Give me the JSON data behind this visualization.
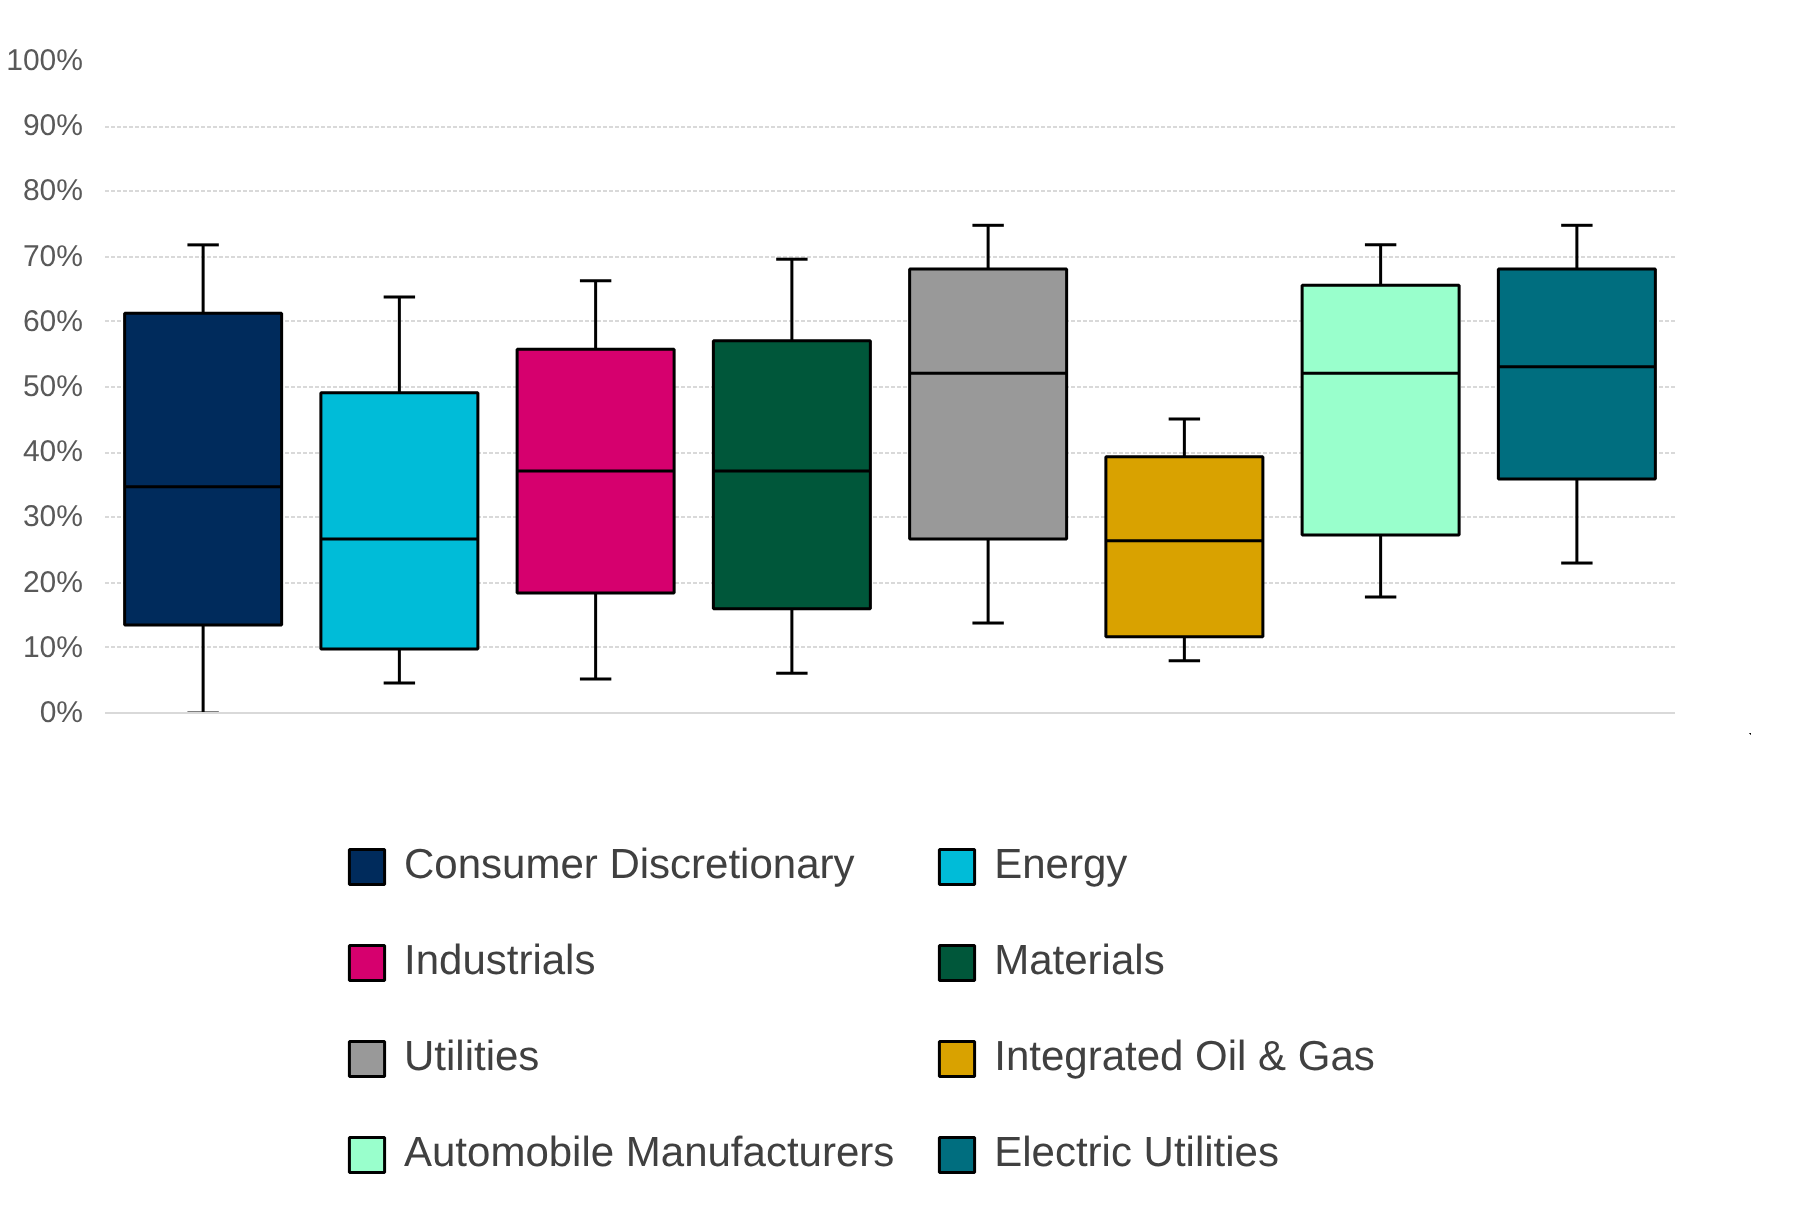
{
  "chart_data": {
    "type": "box",
    "categories": [
      null,
      null,
      null,
      null,
      null,
      null,
      null,
      null
    ],
    "series": [
      {
        "name": "Consumer Discretionary",
        "color": "#002b5c",
        "boxes": [
          {
            "low": 0,
            "q1": 13.5,
            "median": 34.7,
            "q3": 61.3,
            "high": 71.8
          },
          null,
          null,
          null,
          null,
          null,
          null,
          null
        ]
      },
      {
        "name": "Energy",
        "color": "#00bcd8",
        "boxes": [
          null,
          {
            "low": 4.6,
            "q1": 9.8,
            "median": 26.7,
            "q3": 49.1,
            "high": 63.8
          },
          null,
          null,
          null,
          null,
          null,
          null
        ]
      },
      {
        "name": "Industrials",
        "color": "#d6006e",
        "boxes": [
          null,
          null,
          {
            "low": 5.2,
            "q1": 18.4,
            "median": 37.1,
            "q3": 55.8,
            "high": 66.3
          },
          null,
          null,
          null,
          null,
          null
        ]
      },
      {
        "name": "Materials",
        "color": "#00573a",
        "boxes": [
          null,
          null,
          null,
          {
            "low": 6.1,
            "q1": 16.0,
            "median": 37.1,
            "q3": 57.1,
            "high": 69.6
          },
          null,
          null,
          null,
          null
        ]
      },
      {
        "name": "Utilities",
        "color": "#999999",
        "boxes": [
          null,
          null,
          null,
          null,
          {
            "low": 13.8,
            "q1": 26.7,
            "median": 52.1,
            "q3": 68.1,
            "high": 74.8
          },
          null,
          null,
          null
        ]
      },
      {
        "name": "Integrated Oil & Gas",
        "color": "#d9a200",
        "boxes": [
          null,
          null,
          null,
          null,
          null,
          {
            "low": 8.0,
            "q1": 11.7,
            "median": 26.4,
            "q3": 39.3,
            "high": 45.1
          },
          null,
          null
        ]
      },
      {
        "name": "Automobile Manufacturers",
        "color": "#99ffcc",
        "boxes": [
          null,
          null,
          null,
          null,
          null,
          null,
          {
            "low": 17.8,
            "q1": 27.3,
            "median": 52.1,
            "q3": 65.6,
            "high": 71.8
          },
          null
        ]
      },
      {
        "name": "Electric Utilities",
        "color": "#006e7f",
        "boxes": [
          null,
          null,
          null,
          null,
          null,
          null,
          null,
          {
            "low": 23.0,
            "q1": 35.9,
            "median": 53.1,
            "q3": 68.1,
            "high": 74.8
          }
        ]
      }
    ],
    "ylim": [
      0,
      100
    ],
    "yticks": [
      {
        "value": 0,
        "label": "0%"
      },
      {
        "value": 10,
        "label": "10%"
      },
      {
        "value": 20,
        "label": "20%"
      },
      {
        "value": 30,
        "label": "30%"
      },
      {
        "value": 40,
        "label": "40%"
      },
      {
        "value": 50,
        "label": "50%"
      },
      {
        "value": 60,
        "label": "60%"
      },
      {
        "value": 70,
        "label": "70%"
      },
      {
        "value": 80,
        "label": "80%"
      },
      {
        "value": 90,
        "label": "90%"
      },
      {
        "value": 100,
        "label": "100%"
      }
    ],
    "grid": "y",
    "legend": "bottom",
    "tick_labels": "y"
  }
}
